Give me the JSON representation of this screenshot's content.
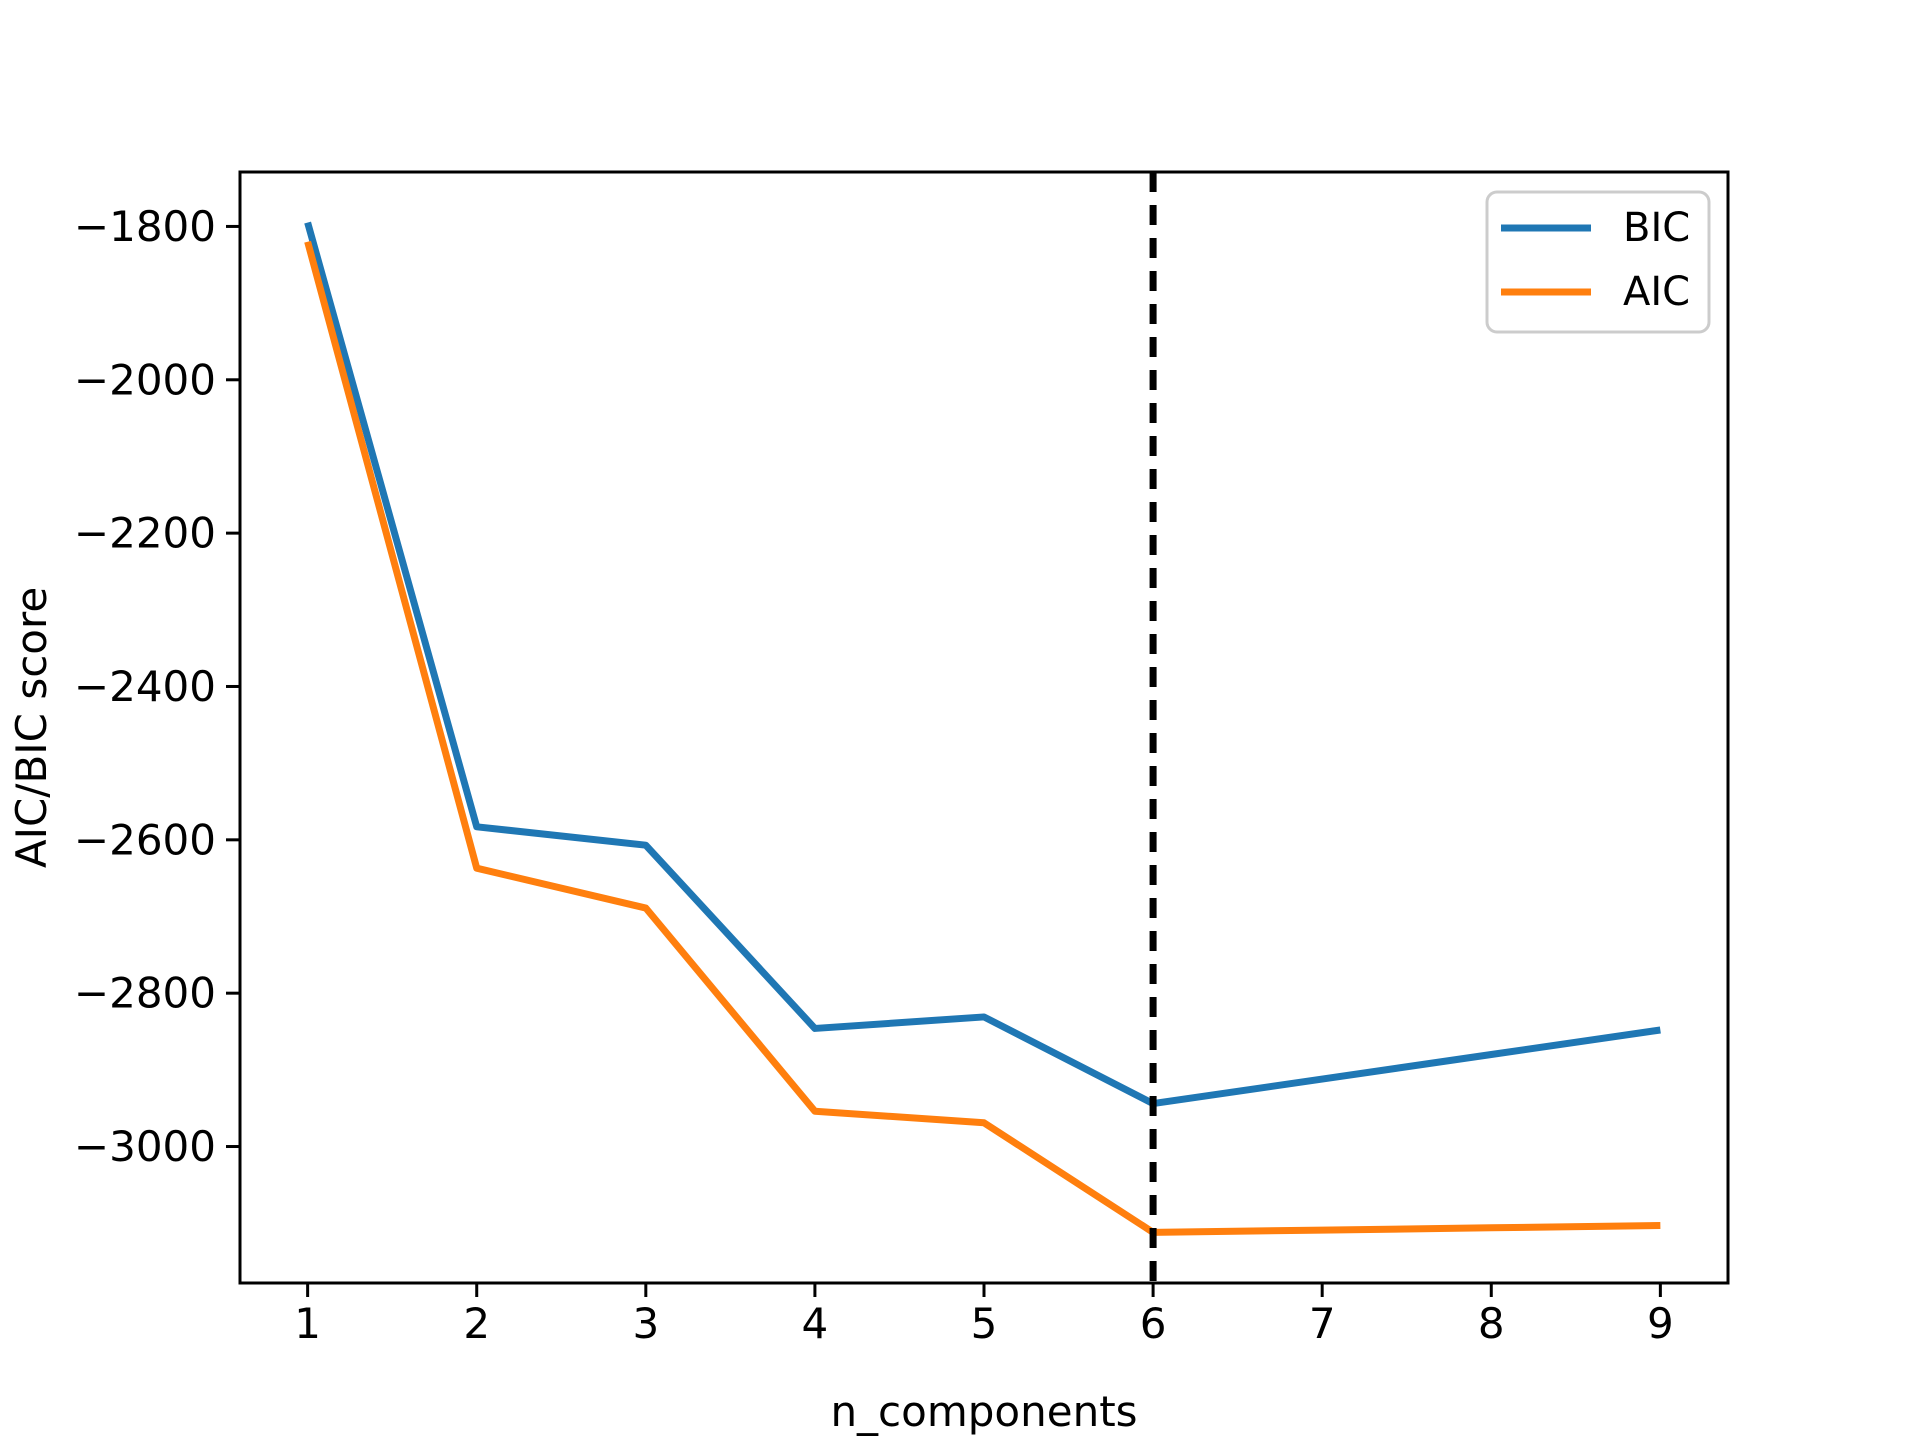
{
  "chart_data": {
    "type": "line",
    "title": "",
    "xlabel": "n_components",
    "ylabel": "AIC/BIC score",
    "x": [
      1,
      2,
      3,
      4,
      5,
      6,
      7,
      8,
      9
    ],
    "series": [
      {
        "name": "BIC",
        "color": "#1f77b4",
        "values": [
          -1795,
          -2583,
          -2607,
          -2846,
          -2831,
          -2944,
          -2912,
          -2880,
          -2848
        ]
      },
      {
        "name": "AIC",
        "color": "#ff7f0e",
        "values": [
          -1820,
          -2637,
          -2689,
          -2954,
          -2969,
          -3112,
          -3109,
          -3106,
          -3103
        ]
      }
    ],
    "vline": {
      "x": 6,
      "color": "#000000",
      "style": "dashed"
    },
    "xticks": {
      "values": [
        1,
        2,
        3,
        4,
        5,
        6,
        7,
        8,
        9
      ],
      "labels": [
        "1",
        "2",
        "3",
        "4",
        "5",
        "6",
        "7",
        "8",
        "9"
      ]
    },
    "yticks": {
      "values": [
        -1800,
        -2000,
        -2200,
        -2400,
        -2600,
        -2800,
        -3000
      ],
      "labels": [
        "−1800",
        "−2000",
        "−2200",
        "−2400",
        "−2600",
        "−2800",
        "−3000"
      ]
    },
    "xlim": [
      0.6,
      9.4
    ],
    "ylim": [
      -3178,
      -1729
    ],
    "grid": false,
    "legend": {
      "position": "upper right",
      "entries": [
        "BIC",
        "AIC"
      ]
    },
    "colors": {
      "axes": "#000000",
      "legend_border": "#cccccc",
      "background": "#ffffff"
    }
  }
}
